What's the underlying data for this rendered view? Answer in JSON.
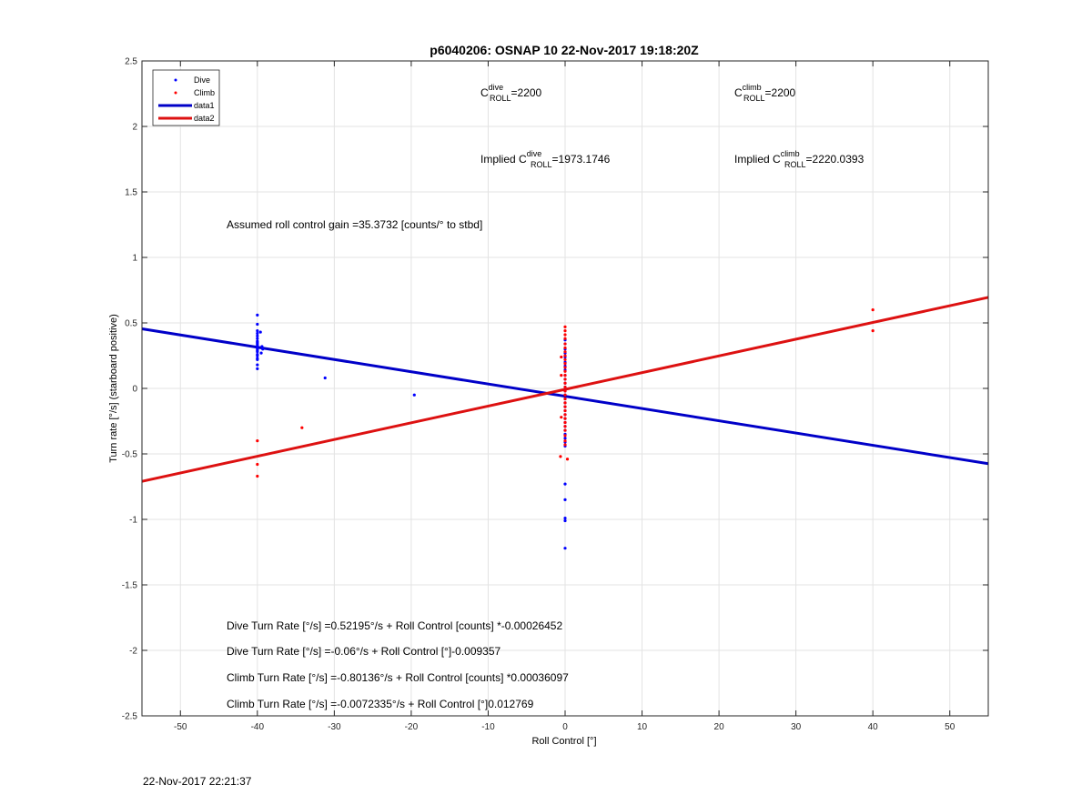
{
  "chart_data": {
    "type": "scatter",
    "title": "p6040206: OSNAP 10 22-Nov-2017 19:18:20Z",
    "xlabel": "Roll Control [°]",
    "ylabel": "Turn rate [°/s] (starboard positive)",
    "xlim": [
      -55,
      55
    ],
    "ylim": [
      -2.5,
      2.5
    ],
    "xticks": [
      -50,
      -40,
      -30,
      -20,
      -10,
      0,
      10,
      20,
      30,
      40,
      50
    ],
    "yticks": [
      -2.5,
      -2,
      -1.5,
      -1,
      -0.5,
      0,
      0.5,
      1,
      1.5,
      2,
      2.5
    ],
    "grid": true,
    "legend_position": "top-left",
    "series": [
      {
        "name": "Dive",
        "kind": "points",
        "color": "#0000ff",
        "points": [
          [
            -40,
            0.56
          ],
          [
            -40,
            0.49
          ],
          [
            -40,
            0.44
          ],
          [
            -40,
            0.42
          ],
          [
            -40,
            0.4
          ],
          [
            -40,
            0.38
          ],
          [
            -40,
            0.36
          ],
          [
            -40,
            0.35
          ],
          [
            -40,
            0.34
          ],
          [
            -40,
            0.33
          ],
          [
            -40,
            0.32
          ],
          [
            -40,
            0.31
          ],
          [
            -40,
            0.3
          ],
          [
            -40,
            0.29
          ],
          [
            -40,
            0.28
          ],
          [
            -40,
            0.26
          ],
          [
            -40,
            0.25
          ],
          [
            -40,
            0.23
          ],
          [
            -40,
            0.22
          ],
          [
            -40,
            0.18
          ],
          [
            -40,
            0.15
          ],
          [
            -39.4,
            0.32
          ],
          [
            -39.5,
            0.27
          ],
          [
            -39.6,
            0.43
          ],
          [
            -39.3,
            0.3
          ],
          [
            -31.2,
            0.08
          ],
          [
            -19.6,
            -0.05
          ],
          [
            0,
            0.37
          ],
          [
            0,
            0.34
          ],
          [
            0,
            0.3
          ],
          [
            0,
            0.27
          ],
          [
            0,
            0.24
          ],
          [
            0,
            0.2
          ],
          [
            0,
            0.17
          ],
          [
            0,
            0.14
          ],
          [
            0,
            0.1
          ],
          [
            0,
            0.07
          ],
          [
            0,
            0.04
          ],
          [
            0,
            0.01
          ],
          [
            0,
            -0.02
          ],
          [
            0,
            -0.05
          ],
          [
            0,
            -0.08
          ],
          [
            0,
            -0.11
          ],
          [
            0,
            -0.14
          ],
          [
            0,
            -0.17
          ],
          [
            0,
            -0.2
          ],
          [
            0,
            -0.23
          ],
          [
            0,
            -0.26
          ],
          [
            0,
            -0.29
          ],
          [
            0,
            -0.32
          ],
          [
            0,
            -0.35
          ],
          [
            0,
            -0.38
          ],
          [
            0,
            -0.41
          ],
          [
            0,
            -0.44
          ],
          [
            0,
            -0.73
          ],
          [
            0,
            -0.85
          ],
          [
            0,
            -0.99
          ],
          [
            0,
            -1.01
          ],
          [
            0,
            -1.22
          ]
        ]
      },
      {
        "name": "Climb",
        "kind": "points",
        "color": "#ff0000",
        "points": [
          [
            -40,
            -0.4
          ],
          [
            -40,
            -0.58
          ],
          [
            -40,
            -0.67
          ],
          [
            -34.2,
            -0.3
          ],
          [
            0,
            0.47
          ],
          [
            0,
            0.44
          ],
          [
            0,
            0.41
          ],
          [
            0,
            0.38
          ],
          [
            0,
            0.34
          ],
          [
            0,
            0.31
          ],
          [
            0,
            0.28
          ],
          [
            0,
            0.25
          ],
          [
            0,
            0.22
          ],
          [
            0,
            0.19
          ],
          [
            0,
            0.16
          ],
          [
            0,
            0.13
          ],
          [
            0,
            0.1
          ],
          [
            0,
            0.07
          ],
          [
            0,
            0.04
          ],
          [
            0,
            0.01
          ],
          [
            0,
            -0.02
          ],
          [
            0,
            -0.05
          ],
          [
            0,
            -0.08
          ],
          [
            0,
            -0.11
          ],
          [
            0,
            -0.14
          ],
          [
            0,
            -0.17
          ],
          [
            0,
            -0.2
          ],
          [
            0,
            -0.23
          ],
          [
            0,
            -0.26
          ],
          [
            0,
            -0.29
          ],
          [
            0,
            -0.32
          ],
          [
            0,
            -0.36
          ],
          [
            0,
            -0.4
          ],
          [
            0,
            -0.43
          ],
          [
            -0.5,
            0.24
          ],
          [
            -0.5,
            0.1
          ],
          [
            -0.5,
            -0.22
          ],
          [
            -0.6,
            -0.52
          ],
          [
            0.3,
            -0.54
          ],
          [
            40,
            0.6
          ],
          [
            40,
            0.44
          ]
        ]
      },
      {
        "name": "data1",
        "kind": "line",
        "color": "#0000c8",
        "x": [
          -55,
          55
        ],
        "y": [
          0.4546,
          -0.5747
        ]
      },
      {
        "name": "data2",
        "kind": "line",
        "color": "#dd1111",
        "x": [
          -55,
          55
        ],
        "y": [
          -0.7095,
          0.695
        ]
      }
    ],
    "annotations": {
      "c_roll_dive": {
        "prefix": "C",
        "sup": "dive",
        "sub": "ROLL",
        "value": "=2200"
      },
      "c_roll_climb": {
        "prefix": "C",
        "sup": "climb",
        "sub": "ROLL",
        "value": "=2200"
      },
      "implied_dive": {
        "prefix": "Implied C",
        "sup": "dive",
        "sub": "ROLL",
        "value": "=1973.1746"
      },
      "implied_climb": {
        "prefix": "Implied C",
        "sup": "climb",
        "sub": "ROLL",
        "value": "=2220.0393"
      },
      "gain": "Assumed roll control gain =35.3732 [counts/° to stbd]",
      "eq1": "Dive Turn Rate [°/s] =0.52195°/s + Roll Control [counts] *-0.00026452",
      "eq2": "Dive Turn Rate [°/s] =-0.06°/s + Roll Control [°]-0.009357",
      "eq3": "Climb Turn Rate [°/s] =-0.80136°/s + Roll Control [counts] *0.00036097",
      "eq4": "Climb Turn Rate [°/s] =-0.0072335°/s + Roll Control [°]0.012769"
    }
  },
  "footer": {
    "timestamp": "22-Nov-2017 22:21:37"
  }
}
